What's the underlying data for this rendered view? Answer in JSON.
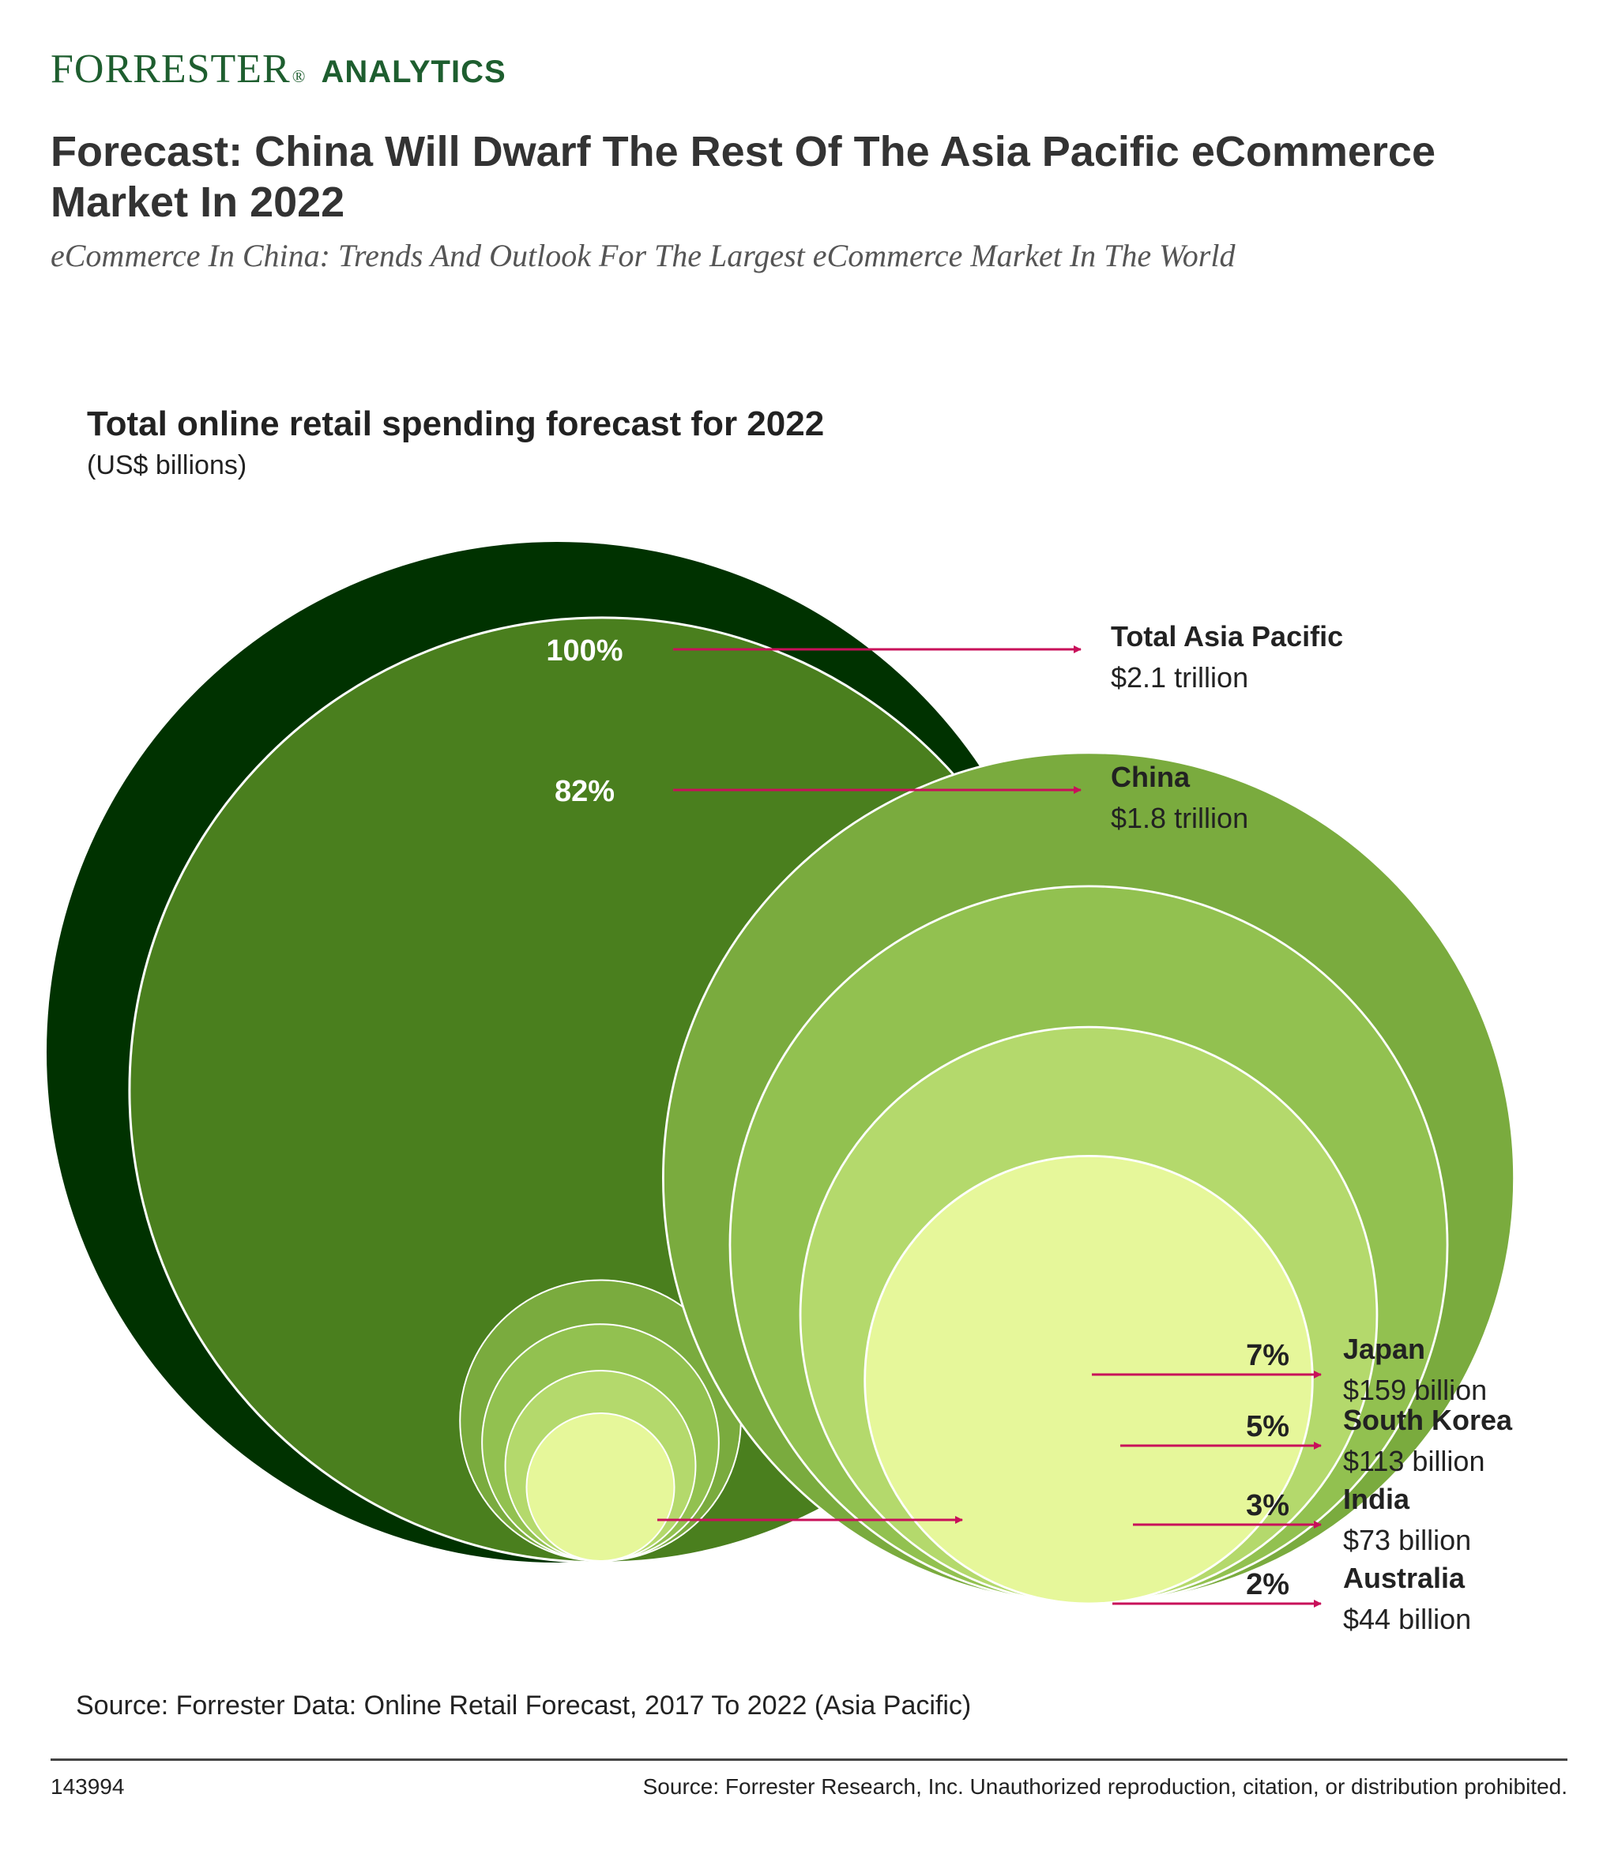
{
  "brand": {
    "name": "FORRESTER",
    "mark": "®",
    "sub": "ANALYTICS",
    "color": "#1e5e2f"
  },
  "title": "Forecast: China Will Dwarf The Rest Of The Asia Pacific eCommerce Market In 2022",
  "subtitle": "eCommerce In China: Trends And Outlook For The Largest eCommerce Market In The World",
  "chart_data": {
    "type": "bubble",
    "title": "Total online retail spending forecast for 2022",
    "unit": "(US$ billions)",
    "items": [
      {
        "name": "Total Asia Pacific",
        "value_label": "$2.1 trillion",
        "value": 2100,
        "share": "100%",
        "color": "#003200"
      },
      {
        "name": "China",
        "value_label": "$1.8 trillion",
        "value": 1800,
        "share": "82%",
        "color": "#4a7f1e"
      },
      {
        "name": "Japan",
        "value_label": "$159 billion",
        "value": 159,
        "share": "7%",
        "color": "#7aab3e"
      },
      {
        "name": "South Korea",
        "value_label": "$113 billion",
        "value": 113,
        "share": "5%",
        "color": "#92c150"
      },
      {
        "name": "India",
        "value_label": "$73 billion",
        "value": 73,
        "share": "3%",
        "color": "#b4d96c"
      },
      {
        "name": "Australia",
        "value_label": "$44 billion",
        "value": 44,
        "share": "2%",
        "color": "#e6f79a"
      }
    ],
    "arrow_color": "#c8105a"
  },
  "source": "Source: Forrester Data: Online Retail Forecast, 2017 To 2022 (Asia Pacific)",
  "footer": {
    "id": "143994",
    "note": "Source: Forrester Research, Inc. Unauthorized reproduction, citation, or distribution prohibited."
  }
}
